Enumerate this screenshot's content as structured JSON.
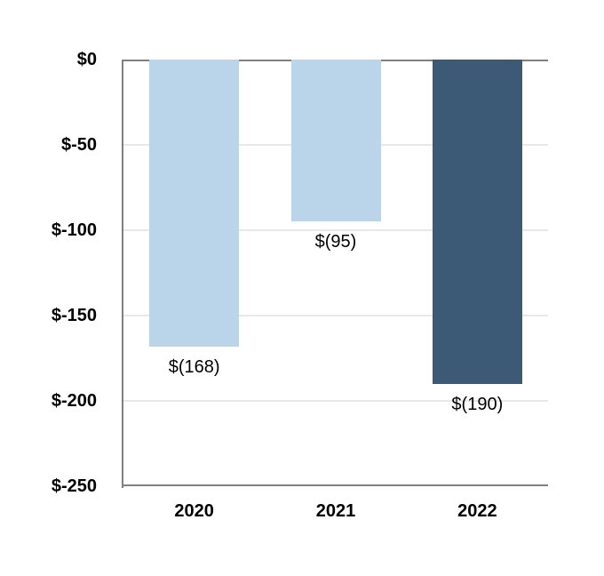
{
  "chart_data": {
    "type": "bar",
    "title": "",
    "xlabel": "",
    "ylabel": "",
    "categories": [
      "2020",
      "2021",
      "2022"
    ],
    "values": [
      -168,
      -95,
      -190
    ],
    "data_labels": [
      "$(168)",
      "$(95)",
      "$(190)"
    ],
    "bar_colors": [
      "#BAD4E9",
      "#BAD4E9",
      "#3C5A76"
    ],
    "ylim": [
      0,
      -250
    ],
    "ytick_values": [
      0,
      -50,
      -100,
      -150,
      -200,
      -250
    ],
    "ytick_labels": [
      "$0",
      "$-50",
      "$-100",
      "$-150",
      "$-200",
      "$-250"
    ],
    "grid": true,
    "legend_position": "none",
    "colors": {
      "light_blue": "#BAD4E9",
      "dark_blue": "#3C5A76",
      "axis": "#808080",
      "gridline": "#E8E8E8",
      "text": "#000000",
      "background": "#FFFFFF"
    }
  }
}
